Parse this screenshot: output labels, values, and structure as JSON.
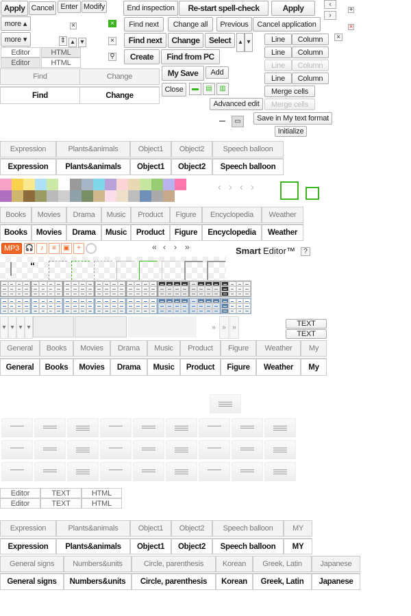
{
  "buttons": {
    "apply": "Apply",
    "cancel": "Cancel",
    "enter": "Enter",
    "modify": "Modify",
    "more_up": "more ▴",
    "more_down": "more ▾",
    "end_inspection": "End inspection",
    "restart": "Re-start spell-check",
    "apply2": "Apply",
    "find_next": "Find next",
    "change_all": "Change all",
    "previous": "Previous",
    "cancel_application": "Cancel application",
    "find_next_bold": "Find next",
    "change": "Change",
    "select": "Select",
    "create": "Create",
    "find_from_pc": "Find from PC",
    "my_save": "My Save",
    "add": "Add",
    "close": "Close",
    "advanced_edit": "Advanced edit",
    "save_my_format": "Save in My text format",
    "initialize": "Initialize"
  },
  "table_buttons": [
    [
      "Line",
      "Column"
    ],
    [
      "Line",
      "Column"
    ],
    [
      "Line",
      "Column"
    ],
    [
      "Line",
      "Column"
    ]
  ],
  "merge_cells": [
    "Merge cells",
    "Merge cells"
  ],
  "mode_tabs": {
    "editor": "Editor",
    "html": "HTML",
    "text": "TEXT"
  },
  "find_tabs": [
    "Find",
    "Change"
  ],
  "tabs_symbols": [
    "Expression",
    "Plants&animals",
    "Object1",
    "Object2",
    "Speech balloon"
  ],
  "tabs_category": [
    "Books",
    "Movies",
    "Drama",
    "Music",
    "Product",
    "Figure",
    "Encyclopedia",
    "Weather"
  ],
  "tabs_general": [
    "General",
    "Books",
    "Movies",
    "Drama",
    "Music",
    "Product",
    "Figure",
    "Weather",
    "My"
  ],
  "tabs_symbols2": [
    "Expression",
    "Plants&animals",
    "Object1",
    "Object2",
    "Speech balloon",
    "MY"
  ],
  "tabs_chars": [
    "General signs",
    "Numbers&units",
    "Circle, parenthesis",
    "Korean",
    "Greek, Latin",
    "Japanese"
  ],
  "media": {
    "mp3": "MP3"
  },
  "pager": [
    "«",
    "‹",
    "›",
    "»"
  ],
  "brand": {
    "smart": "Smart",
    "editor": "Editor™",
    "help": "?"
  },
  "more_arrows": "»",
  "colors": {
    "accent": "#f26522",
    "green": "#3cb521",
    "swatches": [
      "#f7a1c4",
      "#f9d24d",
      "#f9e98e",
      "#aee0f7",
      "#cde9a8",
      "#ffffff",
      "#9a9a9a",
      "#a7b5c8",
      "#7fd6e8",
      "#b8a0d8",
      "#fbd5d5",
      "#e8d9b4",
      "#c6e6a2",
      "#98cc73",
      "#b9b3f0",
      "#ff77aa",
      "#b06fbf",
      "#cfb66f",
      "#8e6b3a",
      "#9b9b66",
      "#bbbbbb",
      "#cfcfcf",
      "#8fa2aa",
      "#7a8f66",
      "#d0b88e",
      "#f9dde8",
      "#eee0c8",
      "#bdbdbd",
      "#7090b8",
      "#aaa",
      "#c7a88a",
      "#ffffff"
    ]
  }
}
